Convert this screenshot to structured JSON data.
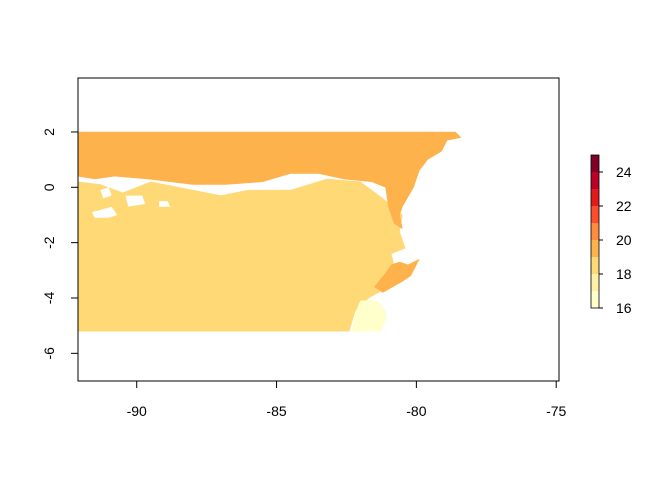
{
  "chart_data": {
    "type": "heatmap",
    "title": "",
    "xlabel": "",
    "ylabel": "",
    "xlim": [
      -92.1,
      -74.9
    ],
    "ylim": [
      -7,
      3.95
    ],
    "x_ticks": [
      {
        "value": -90,
        "label": "-90"
      },
      {
        "value": -85,
        "label": "-85"
      },
      {
        "value": -80,
        "label": "-80"
      },
      {
        "value": -75,
        "label": "-75"
      }
    ],
    "y_ticks": [
      {
        "value": 2,
        "label": "2"
      },
      {
        "value": 0,
        "label": "0"
      },
      {
        "value": -2,
        "label": "-2"
      },
      {
        "value": -4,
        "label": "-4"
      },
      {
        "value": -6,
        "label": "-6"
      }
    ],
    "legend": {
      "placement": "right",
      "range": [
        16,
        25
      ],
      "ticks": [
        {
          "value": 16,
          "label": "16"
        },
        {
          "value": 18,
          "label": "18"
        },
        {
          "value": 20,
          "label": "20"
        },
        {
          "value": 22,
          "label": "22"
        },
        {
          "value": 24,
          "label": "24"
        }
      ],
      "bins": [
        {
          "from": 16,
          "to": 17,
          "color": "#ffffcc"
        },
        {
          "from": 17,
          "to": 18,
          "color": "#fff0a8"
        },
        {
          "from": 18,
          "to": 19,
          "color": "#fed976"
        },
        {
          "from": 19,
          "to": 20,
          "color": "#feb24c"
        },
        {
          "from": 20,
          "to": 21,
          "color": "#fd8d3c"
        },
        {
          "from": 21,
          "to": 22,
          "color": "#fc4e2a"
        },
        {
          "from": 22,
          "to": 23,
          "color": "#e31a1c"
        },
        {
          "from": 23,
          "to": 24,
          "color": "#bd0026"
        },
        {
          "from": 24,
          "to": 25,
          "color": "#800026"
        }
      ]
    },
    "regions": [
      {
        "name": "18-19",
        "color": "#fed976",
        "polygon": [
          [
            -92.1,
            -5.2
          ],
          [
            -92.1,
            0.2
          ],
          [
            -91.3,
            0.1
          ],
          [
            -90.5,
            -0.2
          ],
          [
            -89.5,
            0.2
          ],
          [
            -88.5,
            0.0
          ],
          [
            -87.0,
            -0.3
          ],
          [
            -86.0,
            -0.1
          ],
          [
            -84.5,
            -0.1
          ],
          [
            -83.2,
            0.3
          ],
          [
            -82.0,
            0.2
          ],
          [
            -81.2,
            -0.4
          ],
          [
            -80.5,
            -1.0
          ],
          [
            -80.6,
            -1.6
          ],
          [
            -80.4,
            -2.2
          ],
          [
            -80.9,
            -2.4
          ],
          [
            -80.7,
            -3.2
          ],
          [
            -81.0,
            -3.6
          ],
          [
            -81.7,
            -4.0
          ],
          [
            -82.0,
            -4.3
          ],
          [
            -82.2,
            -4.5
          ],
          [
            -82.4,
            -5.2
          ]
        ]
      },
      {
        "name": "19-20",
        "color": "#feb24c",
        "polygon": [
          [
            -92.1,
            2.0
          ],
          [
            -78.6,
            2.0
          ],
          [
            -78.4,
            1.8
          ],
          [
            -78.9,
            1.7
          ],
          [
            -79.1,
            1.3
          ],
          [
            -79.6,
            1.0
          ],
          [
            -79.9,
            0.6
          ],
          [
            -80.1,
            0.0
          ],
          [
            -80.5,
            -0.7
          ],
          [
            -80.6,
            -1.0
          ],
          [
            -80.5,
            -1.5
          ],
          [
            -80.8,
            -1.3
          ],
          [
            -81.0,
            -0.7
          ],
          [
            -81.1,
            0.0
          ],
          [
            -81.6,
            0.2
          ],
          [
            -82.6,
            0.3
          ],
          [
            -83.5,
            0.5
          ],
          [
            -84.5,
            0.5
          ],
          [
            -85.5,
            0.2
          ],
          [
            -86.8,
            0.1
          ],
          [
            -88.0,
            0.1
          ],
          [
            -89.6,
            0.3
          ],
          [
            -90.8,
            0.4
          ],
          [
            -91.5,
            0.3
          ],
          [
            -92.1,
            0.4
          ]
        ]
      },
      {
        "name": "19-20",
        "color": "#feb24c",
        "polygon": [
          [
            -80.6,
            -2.7
          ],
          [
            -80.3,
            -2.8
          ],
          [
            -79.9,
            -2.6
          ],
          [
            -80.2,
            -3.2
          ],
          [
            -80.5,
            -3.4
          ],
          [
            -81.2,
            -3.8
          ],
          [
            -81.5,
            -3.6
          ],
          [
            -81.1,
            -3.1
          ],
          [
            -80.9,
            -2.8
          ]
        ]
      },
      {
        "name": "16-17",
        "color": "#ffffcc",
        "polygon": [
          [
            -82.3,
            -5.2
          ],
          [
            -82.2,
            -4.6
          ],
          [
            -82.0,
            -4.1
          ],
          [
            -81.4,
            -4.1
          ],
          [
            -81.1,
            -4.5
          ],
          [
            -81.1,
            -4.8
          ],
          [
            -81.3,
            -5.2
          ]
        ]
      }
    ]
  }
}
